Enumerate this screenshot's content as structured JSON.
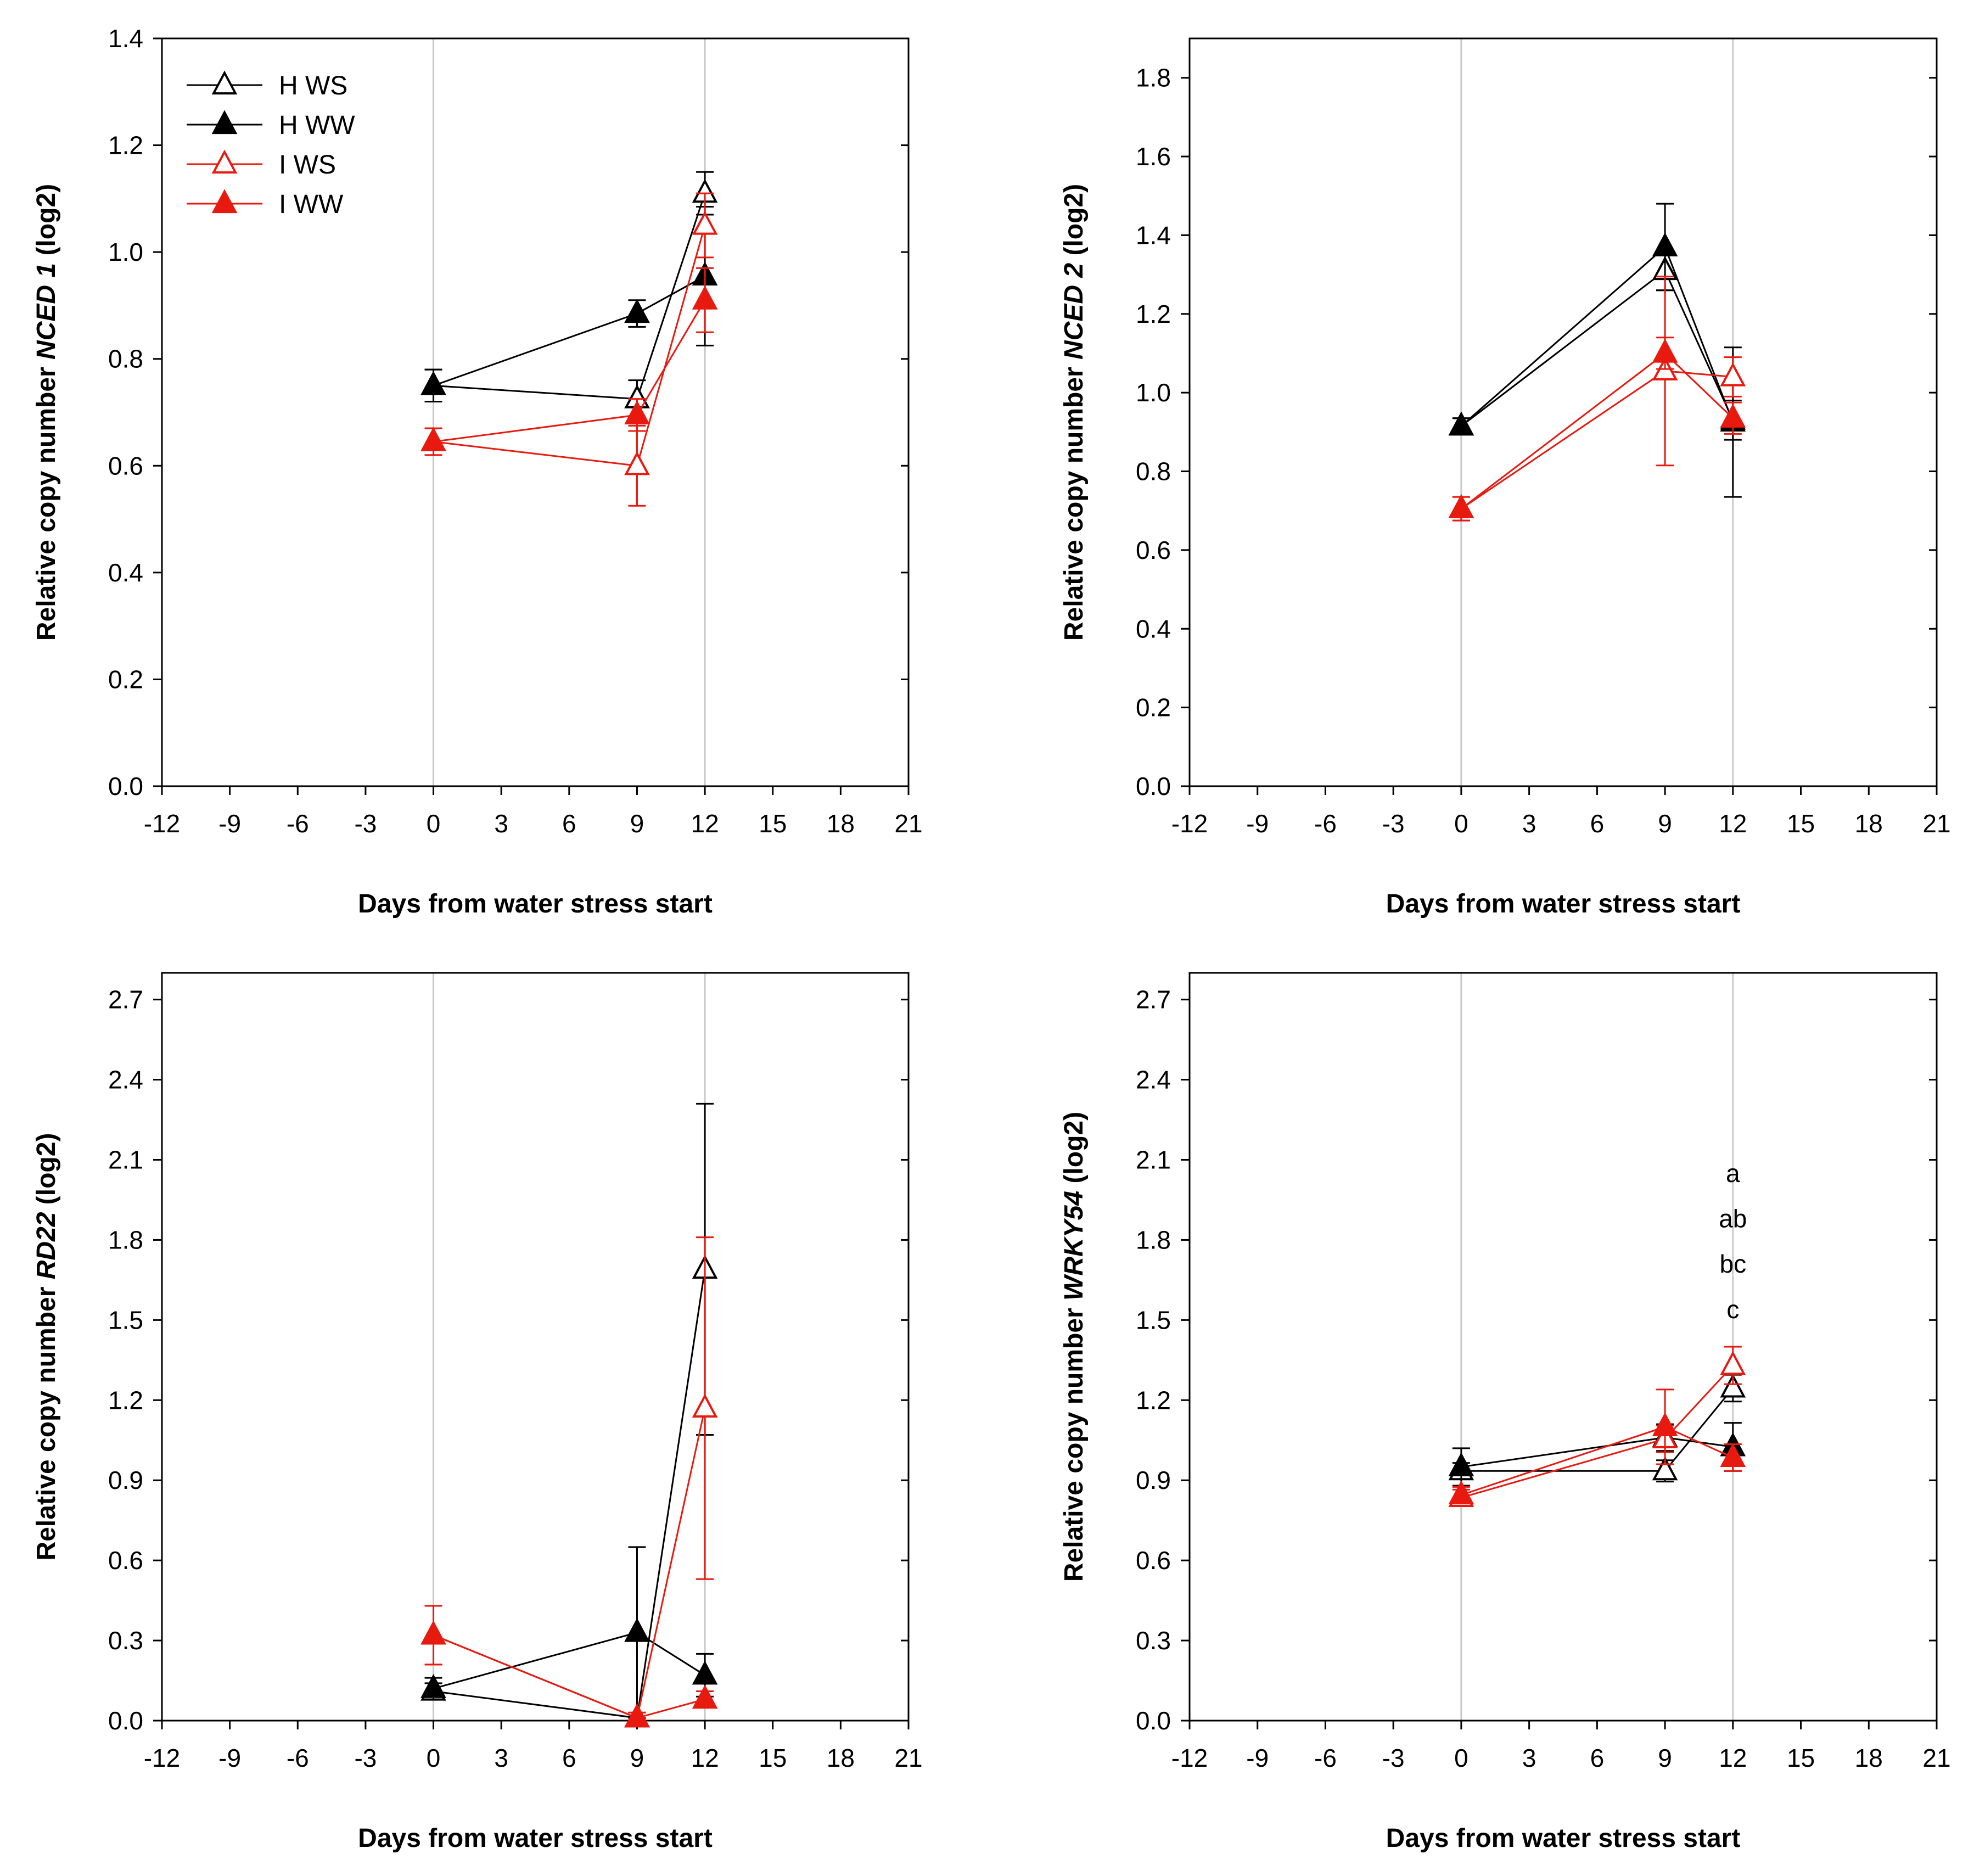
{
  "colors": {
    "black": "#000000",
    "red": "#e8190f",
    "ref_line": "#c8c8c8"
  },
  "legend": [
    {
      "label": "H WS",
      "color": "#000000",
      "filled": false
    },
    {
      "label": "H WW",
      "color": "#000000",
      "filled": true
    },
    {
      "label": "I WS",
      "color": "#e8190f",
      "filled": false
    },
    {
      "label": "I WW",
      "color": "#e8190f",
      "filled": true
    }
  ],
  "chart_data": [
    {
      "type": "line",
      "xlabel": "Days from water stress start",
      "ylabel_pre": "Relative copy number ",
      "ylabel_gene": "NCED 1",
      "ylabel_post": " (log2)",
      "xlim": [
        -12,
        21
      ],
      "ylim": [
        0,
        1.4
      ],
      "xticks": [
        "-12",
        "-9",
        "-6",
        "-3",
        "0",
        "3",
        "6",
        "9",
        "12",
        "15",
        "18",
        "21"
      ],
      "yticks": [
        "0.0",
        "0.2",
        "0.4",
        "0.6",
        "0.8",
        "1.0",
        "1.2",
        "1.4"
      ],
      "reference_lines_x": [
        0,
        12
      ],
      "letters": [],
      "series": [
        {
          "name": "H WS",
          "x": [
            0,
            9,
            12
          ],
          "y": [
            0.75,
            0.725,
            1.11
          ],
          "err": [
            0.03,
            0.035,
            0.04
          ]
        },
        {
          "name": "H WW",
          "x": [
            0,
            9,
            12
          ],
          "y": [
            0.75,
            0.885,
            0.955
          ],
          "err": [
            0.03,
            0.025,
            0.13
          ]
        },
        {
          "name": "I WS",
          "x": [
            0,
            9,
            12
          ],
          "y": [
            0.645,
            0.6,
            1.05
          ],
          "err": [
            0.025,
            0.075,
            0.06
          ]
        },
        {
          "name": "I WW",
          "x": [
            0,
            9,
            12
          ],
          "y": [
            0.645,
            0.695,
            0.91
          ],
          "err": [
            0.025,
            0.03,
            0.06
          ]
        }
      ]
    },
    {
      "type": "line",
      "xlabel": "Days from water stress start",
      "ylabel_pre": "Relative copy number ",
      "ylabel_gene": "NCED 2",
      "ylabel_post": " (log2)",
      "xlim": [
        -12,
        21
      ],
      "ylim": [
        0,
        1.9
      ],
      "xticks": [
        "-12",
        "-9",
        "-6",
        "-3",
        "0",
        "3",
        "6",
        "9",
        "12",
        "15",
        "18",
        "21"
      ],
      "yticks": [
        "0.0",
        "0.2",
        "0.4",
        "0.6",
        "0.8",
        "1.0",
        "1.2",
        "1.4",
        "1.6",
        "1.8"
      ],
      "reference_lines_x": [
        0,
        12
      ],
      "letters": [],
      "series": [
        {
          "name": "H WS",
          "x": [
            0,
            9,
            12
          ],
          "y": [
            0.915,
            1.31,
            0.93
          ],
          "err": [
            0.02,
            0.05,
            0.05
          ]
        },
        {
          "name": "H WW",
          "x": [
            0,
            9,
            12
          ],
          "y": [
            0.915,
            1.37,
            0.925
          ],
          "err": [
            0.02,
            0.11,
            0.19
          ]
        },
        {
          "name": "I WS",
          "x": [
            0,
            9,
            12
          ],
          "y": [
            0.705,
            1.055,
            1.04
          ],
          "err": [
            0.03,
            0.24,
            0.05
          ]
        },
        {
          "name": "I WW",
          "x": [
            0,
            9,
            12
          ],
          "y": [
            0.705,
            1.1,
            0.935
          ],
          "err": [
            0.03,
            0.04,
            0.04
          ]
        }
      ]
    },
    {
      "type": "line",
      "xlabel": "Days from water stress start",
      "ylabel_pre": "Relative copy number ",
      "ylabel_gene": "RD22",
      "ylabel_post": " (log2)",
      "xlim": [
        -12,
        21
      ],
      "ylim": [
        0,
        2.8
      ],
      "xticks": [
        "-12",
        "-9",
        "-6",
        "-3",
        "0",
        "3",
        "6",
        "9",
        "12",
        "15",
        "18",
        "21"
      ],
      "yticks": [
        "0.0",
        "0.3",
        "0.6",
        "0.9",
        "1.2",
        "1.5",
        "1.8",
        "2.1",
        "2.4",
        "2.7"
      ],
      "reference_lines_x": [
        0,
        12
      ],
      "letters": [],
      "series": [
        {
          "name": "H WS",
          "x": [
            0,
            9,
            12
          ],
          "y": [
            0.11,
            0.01,
            1.69
          ],
          "err": [
            0.03,
            0.02,
            0.62
          ]
        },
        {
          "name": "H WW",
          "x": [
            0,
            9,
            12
          ],
          "y": [
            0.12,
            0.33,
            0.17
          ],
          "err": [
            0.04,
            0.32,
            0.08
          ]
        },
        {
          "name": "I WS",
          "x": [
            0,
            9,
            12
          ],
          "y": [
            0.32,
            0.01,
            1.17
          ],
          "err": [
            0.11,
            0.02,
            0.64
          ]
        },
        {
          "name": "I WW",
          "x": [
            0,
            9,
            12
          ],
          "y": [
            0.32,
            0.01,
            0.08
          ],
          "err": [
            0.11,
            0.02,
            0.03
          ]
        }
      ]
    },
    {
      "type": "line",
      "xlabel": "Days from water stress start",
      "ylabel_pre": "Relative copy number ",
      "ylabel_gene": "WRKY54",
      "ylabel_post": " (log2)",
      "xlim": [
        -12,
        21
      ],
      "ylim": [
        0,
        2.8
      ],
      "xticks": [
        "-12",
        "-9",
        "-6",
        "-3",
        "0",
        "3",
        "6",
        "9",
        "12",
        "15",
        "18",
        "21"
      ],
      "yticks": [
        "0.0",
        "0.3",
        "0.6",
        "0.9",
        "1.2",
        "1.5",
        "1.8",
        "2.1",
        "2.4",
        "2.7"
      ],
      "reference_lines_x": [
        0,
        12
      ],
      "letters": [
        {
          "text": "a",
          "x": 12,
          "y": 2.05
        },
        {
          "text": "ab",
          "x": 12,
          "y": 1.88
        },
        {
          "text": "bc",
          "x": 12,
          "y": 1.71
        },
        {
          "text": "c",
          "x": 12,
          "y": 1.54
        }
      ],
      "series": [
        {
          "name": "H WS",
          "x": [
            0,
            9,
            12
          ],
          "y": [
            0.935,
            0.935,
            1.245
          ],
          "err": [
            0.03,
            0.04,
            0.05
          ]
        },
        {
          "name": "H WW",
          "x": [
            0,
            9,
            12
          ],
          "y": [
            0.95,
            1.06,
            1.025
          ],
          "err": [
            0.07,
            0.05,
            0.09
          ]
        },
        {
          "name": "I WS",
          "x": [
            0,
            9,
            12
          ],
          "y": [
            0.835,
            1.055,
            1.33
          ],
          "err": [
            0.03,
            0.05,
            0.07
          ]
        },
        {
          "name": "I WW",
          "x": [
            0,
            9,
            12
          ],
          "y": [
            0.845,
            1.1,
            0.985
          ],
          "err": [
            0.03,
            0.14,
            0.05
          ]
        }
      ]
    }
  ]
}
